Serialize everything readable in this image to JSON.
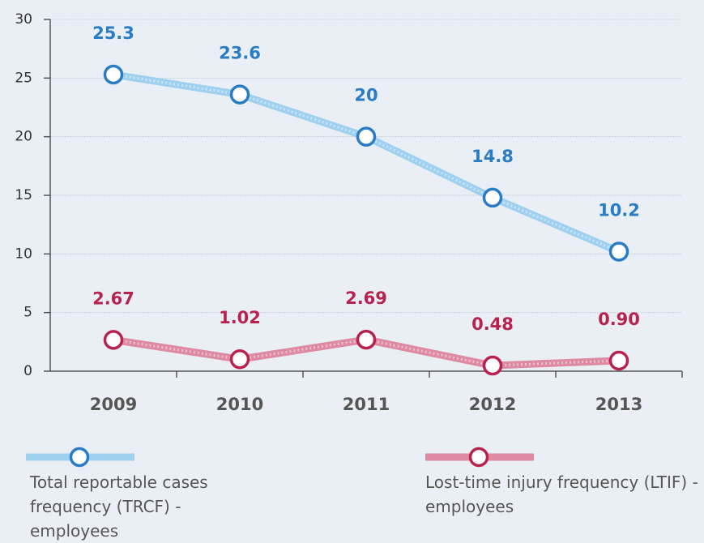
{
  "chart_data": {
    "type": "line",
    "categories": [
      "2009",
      "2010",
      "2011",
      "2012",
      "2013"
    ],
    "series": [
      {
        "name": "Total reportable cases frequency (TRCF) - employees",
        "color": "#2a7cc4",
        "values": [
          25.3,
          23.6,
          20,
          14.8,
          10.2
        ]
      },
      {
        "name": "Lost-time injury frequency (LTIF) - employees",
        "color": "#b8224f",
        "values": [
          2.67,
          1.02,
          2.69,
          0.48,
          0.9
        ],
        "value_labels": [
          "2.67",
          "1.02",
          "2.69",
          "0.48",
          "0.90"
        ]
      }
    ],
    "ylim": [
      0,
      30
    ],
    "yticks": [
      0,
      5,
      10,
      15,
      20,
      25,
      30
    ],
    "grid": true
  }
}
